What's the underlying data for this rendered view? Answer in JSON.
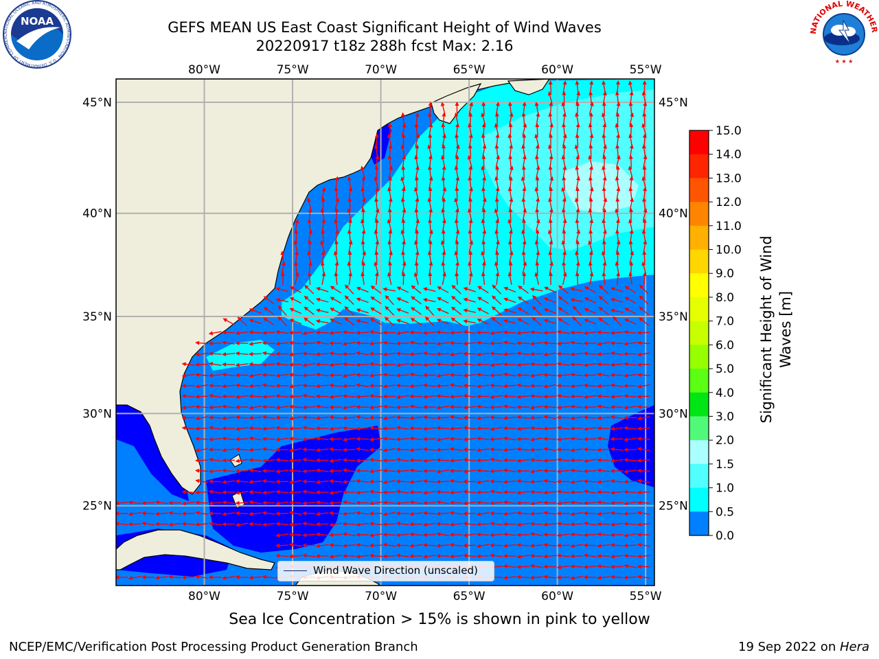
{
  "title": {
    "line1": "GEFS MEAN US East Coast Significant Height of Wind Waves",
    "line2": "20220917 t18z 288h fcst   Max: 2.16"
  },
  "map": {
    "lon_labels": [
      "80°W",
      "75°W",
      "70°W",
      "65°W",
      "60°W",
      "55°W"
    ],
    "lat_labels": [
      "45°N",
      "40°N",
      "35°N",
      "30°N",
      "25°N"
    ],
    "lon_values": [
      -80,
      -75,
      -70,
      -65,
      -60,
      -55
    ],
    "lat_values": [
      45,
      40,
      35,
      30,
      25
    ],
    "lon_range": [
      -85,
      -54.5
    ],
    "lat_range": [
      20.5,
      46
    ],
    "colors": {
      "land": "#efeedc",
      "gridline": "#b0b0b0",
      "arrow": "#ff0000",
      "coast": "#000000"
    }
  },
  "legend": {
    "label": "Wind Wave Direction (unscaled)"
  },
  "colorbar": {
    "title": "Significant Height of Wind Waves [m]",
    "title_line1": "Significant Height of Wind",
    "title_line2": "Waves [m]",
    "ticks": [
      "15.0",
      "14.0",
      "13.0",
      "12.0",
      "11.0",
      "10.0",
      "9.0",
      "8.0",
      "7.0",
      "6.0",
      "5.0",
      "4.0",
      "3.0",
      "2.0",
      "1.5",
      "1.0",
      "0.5",
      "0.0"
    ],
    "colors": [
      "#ff0000",
      "#ff2500",
      "#ff5500",
      "#ff8500",
      "#ffb000",
      "#ffd600",
      "#ffff00",
      "#e6ff00",
      "#c8ff00",
      "#96ff00",
      "#5aff14",
      "#00e614",
      "#50fa78",
      "#aaffff",
      "#50ffff",
      "#00ffff",
      "#0080ff",
      "#0000ff"
    ]
  },
  "ice_note": "Sea Ice Concentration > 15% is shown in pink to yellow",
  "footer": {
    "left": "NCEP/EMC/Verification Post Processing Product Generation Branch",
    "right_prefix": "19 Sep 2022 on ",
    "right_machine": "Hera"
  },
  "logos": {
    "noaa_text": "NOAA",
    "noaa_ring": "NATIONAL OCEANIC AND ATMOSPHERIC ADMINISTRATION · U.S. DEPARTMENT OF COMMERCE",
    "nws_ring": "NATIONAL WEATHER SERVICE"
  }
}
